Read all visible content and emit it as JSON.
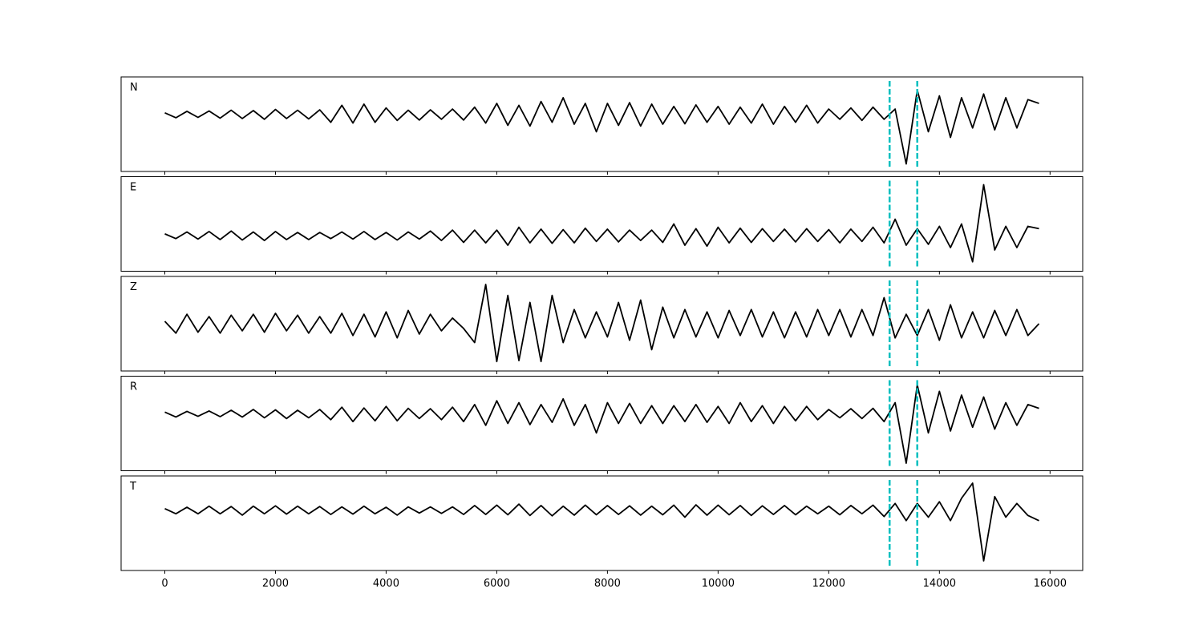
{
  "chart_data": [
    {
      "type": "line",
      "label": "N",
      "color": "#000000",
      "xlim": [
        -790,
        16590
      ],
      "ylim": [
        -1.5,
        1
      ],
      "xticks": [
        0,
        2000,
        4000,
        6000,
        8000,
        10000,
        12000,
        14000,
        16000
      ],
      "markers": [
        13100,
        13600
      ],
      "marker_color": "#00bfbf",
      "x": [
        0,
        200,
        400,
        600,
        800,
        1000,
        1200,
        1400,
        1600,
        1800,
        2000,
        2200,
        2400,
        2600,
        2800,
        3000,
        3200,
        3400,
        3600,
        3800,
        4000,
        4200,
        4400,
        4600,
        4800,
        5000,
        5200,
        5400,
        5600,
        5800,
        6000,
        6200,
        6400,
        6600,
        6800,
        7000,
        7200,
        7400,
        7600,
        7800,
        8000,
        8200,
        8400,
        8600,
        8800,
        9000,
        9200,
        9400,
        9600,
        9800,
        10000,
        10200,
        10400,
        10600,
        10800,
        11000,
        11200,
        11400,
        11600,
        11800,
        12000,
        12200,
        12400,
        12600,
        12800,
        13000,
        13200,
        13400,
        13600,
        13800,
        14000,
        14200,
        14400,
        14600,
        14800,
        15000,
        15200,
        15400,
        15600,
        15800
      ],
      "values": [
        0.05,
        -0.08,
        0.09,
        -0.07,
        0.1,
        -0.09,
        0.12,
        -0.1,
        0.11,
        -0.12,
        0.14,
        -0.1,
        0.12,
        -0.11,
        0.13,
        -0.2,
        0.25,
        -0.22,
        0.28,
        -0.2,
        0.18,
        -0.15,
        0.12,
        -0.14,
        0.13,
        -0.12,
        0.15,
        -0.14,
        0.2,
        -0.22,
        0.3,
        -0.28,
        0.25,
        -0.3,
        0.35,
        -0.2,
        0.45,
        -0.25,
        0.3,
        -0.45,
        0.3,
        -0.28,
        0.32,
        -0.3,
        0.28,
        -0.25,
        0.22,
        -0.24,
        0.26,
        -0.2,
        0.22,
        -0.25,
        0.2,
        -0.22,
        0.28,
        -0.25,
        0.22,
        -0.2,
        0.25,
        -0.22,
        0.15,
        -0.12,
        0.18,
        -0.15,
        0.2,
        -0.12,
        0.15,
        -1.3,
        0.65,
        -0.45,
        0.5,
        -0.6,
        0.45,
        -0.35,
        0.55,
        -0.4,
        0.45,
        -0.35,
        0.4,
        0.3
      ]
    },
    {
      "type": "line",
      "label": "E",
      "color": "#000000",
      "xlim": [
        -790,
        16590
      ],
      "ylim": [
        -0.75,
        1.25
      ],
      "xticks": [
        0,
        2000,
        4000,
        6000,
        8000,
        10000,
        12000,
        14000,
        16000
      ],
      "markers": [
        13100,
        13600
      ],
      "marker_color": "#00bfbf",
      "x": [
        0,
        200,
        400,
        600,
        800,
        1000,
        1200,
        1400,
        1600,
        1800,
        2000,
        2200,
        2400,
        2600,
        2800,
        3000,
        3200,
        3400,
        3600,
        3800,
        4000,
        4200,
        4400,
        4600,
        4800,
        5000,
        5200,
        5400,
        5600,
        5800,
        6000,
        6200,
        6400,
        6600,
        6800,
        7000,
        7200,
        7400,
        7600,
        7800,
        8000,
        8200,
        8400,
        8600,
        8800,
        9000,
        9200,
        9400,
        9600,
        9800,
        10000,
        10200,
        10400,
        10600,
        10800,
        11000,
        11200,
        11400,
        11600,
        11800,
        12000,
        12200,
        12400,
        12600,
        12800,
        13000,
        13200,
        13400,
        13600,
        13800,
        14000,
        14200,
        14400,
        14600,
        14800,
        15000,
        15200,
        15400,
        15600,
        15800
      ],
      "values": [
        0.04,
        -0.06,
        0.08,
        -0.07,
        0.09,
        -0.08,
        0.1,
        -0.09,
        0.08,
        -0.1,
        0.09,
        -0.08,
        0.07,
        -0.08,
        0.07,
        -0.06,
        0.08,
        -0.07,
        0.09,
        -0.08,
        0.07,
        -0.09,
        0.08,
        -0.07,
        0.1,
        -0.1,
        0.12,
        -0.14,
        0.12,
        -0.15,
        0.12,
        -0.2,
        0.18,
        -0.15,
        0.14,
        -0.16,
        0.13,
        -0.15,
        0.16,
        -0.12,
        0.14,
        -0.13,
        0.12,
        -0.1,
        0.12,
        -0.14,
        0.25,
        -0.2,
        0.15,
        -0.22,
        0.18,
        -0.15,
        0.16,
        -0.14,
        0.15,
        -0.12,
        0.14,
        -0.13,
        0.15,
        -0.12,
        0.13,
        -0.15,
        0.14,
        -0.12,
        0.18,
        -0.15,
        0.35,
        -0.2,
        0.15,
        -0.18,
        0.2,
        -0.25,
        0.25,
        -0.55,
        1.08,
        -0.3,
        0.2,
        -0.25,
        0.2,
        0.15
      ]
    },
    {
      "type": "line",
      "label": "Z",
      "color": "#000000",
      "xlim": [
        -790,
        16590
      ],
      "ylim": [
        -1,
        1
      ],
      "xticks": [
        0,
        2000,
        4000,
        6000,
        8000,
        10000,
        12000,
        14000,
        16000
      ],
      "markers": [
        13100,
        13600
      ],
      "marker_color": "#00bfbf",
      "x": [
        0,
        200,
        400,
        600,
        800,
        1000,
        1200,
        1400,
        1600,
        1800,
        2000,
        2200,
        2400,
        2600,
        2800,
        3000,
        3200,
        3400,
        3600,
        3800,
        4000,
        4200,
        4400,
        4600,
        4800,
        5000,
        5200,
        5400,
        5600,
        5800,
        6000,
        6200,
        6400,
        6600,
        6800,
        7000,
        7200,
        7400,
        7600,
        7800,
        8000,
        8200,
        8400,
        8600,
        8800,
        9000,
        9200,
        9400,
        9600,
        9800,
        10000,
        10200,
        10400,
        10600,
        10800,
        11000,
        11200,
        11400,
        11600,
        11800,
        12000,
        12200,
        12400,
        12600,
        12800,
        13000,
        13200,
        13400,
        13600,
        13800,
        14000,
        14200,
        14400,
        14600,
        14800,
        15000,
        15200,
        15400,
        15600,
        15800
      ],
      "values": [
        0.05,
        -0.2,
        0.2,
        -0.18,
        0.15,
        -0.2,
        0.18,
        -0.15,
        0.2,
        -0.18,
        0.22,
        -0.15,
        0.18,
        -0.2,
        0.15,
        -0.2,
        0.22,
        -0.25,
        0.2,
        -0.28,
        0.25,
        -0.3,
        0.28,
        -0.22,
        0.2,
        -0.15,
        0.12,
        -0.1,
        -0.4,
        0.83,
        -0.8,
        0.6,
        -0.78,
        0.45,
        -0.8,
        0.6,
        -0.4,
        0.3,
        -0.3,
        0.25,
        -0.28,
        0.45,
        -0.35,
        0.5,
        -0.55,
        0.35,
        -0.3,
        0.3,
        -0.28,
        0.25,
        -0.3,
        0.28,
        -0.25,
        0.3,
        -0.28,
        0.25,
        -0.3,
        0.25,
        -0.28,
        0.3,
        -0.25,
        0.3,
        -0.28,
        0.3,
        -0.25,
        0.55,
        -0.3,
        0.2,
        -0.25,
        0.3,
        -0.35,
        0.4,
        -0.3,
        0.25,
        -0.3,
        0.28,
        -0.25,
        0.3,
        -0.25,
        0.0
      ]
    },
    {
      "type": "line",
      "label": "R",
      "color": "#000000",
      "xlim": [
        -790,
        16590
      ],
      "ylim": [
        -1.5,
        1
      ],
      "xticks": [
        0,
        2000,
        4000,
        6000,
        8000,
        10000,
        12000,
        14000,
        16000
      ],
      "markers": [
        13100,
        13600
      ],
      "marker_color": "#00bfbf",
      "x": [
        0,
        200,
        400,
        600,
        800,
        1000,
        1200,
        1400,
        1600,
        1800,
        2000,
        2200,
        2400,
        2600,
        2800,
        3000,
        3200,
        3400,
        3600,
        3800,
        4000,
        4200,
        4400,
        4600,
        4800,
        5000,
        5200,
        5400,
        5600,
        5800,
        6000,
        6200,
        6400,
        6600,
        6800,
        7000,
        7200,
        7400,
        7600,
        7800,
        8000,
        8200,
        8400,
        8600,
        8800,
        9000,
        9200,
        9400,
        9600,
        9800,
        10000,
        10200,
        10400,
        10600,
        10800,
        11000,
        11200,
        11400,
        11600,
        11800,
        12000,
        12200,
        12400,
        12600,
        12800,
        13000,
        13200,
        13400,
        13600,
        13800,
        14000,
        14200,
        14400,
        14600,
        14800,
        15000,
        15200,
        15400,
        15600,
        15800
      ],
      "values": [
        0.05,
        -0.08,
        0.07,
        -0.06,
        0.08,
        -0.07,
        0.1,
        -0.08,
        0.12,
        -0.1,
        0.11,
        -0.12,
        0.1,
        -0.1,
        0.12,
        -0.15,
        0.18,
        -0.2,
        0.16,
        -0.18,
        0.2,
        -0.18,
        0.15,
        -0.12,
        0.14,
        -0.15,
        0.18,
        -0.2,
        0.25,
        -0.3,
        0.35,
        -0.25,
        0.3,
        -0.28,
        0.25,
        -0.22,
        0.4,
        -0.3,
        0.25,
        -0.5,
        0.3,
        -0.25,
        0.28,
        -0.25,
        0.22,
        -0.25,
        0.22,
        -0.2,
        0.25,
        -0.22,
        0.2,
        -0.25,
        0.3,
        -0.2,
        0.22,
        -0.25,
        0.2,
        -0.18,
        0.2,
        -0.15,
        0.12,
        -0.1,
        0.14,
        -0.12,
        0.15,
        -0.2,
        0.3,
        -1.3,
        0.77,
        -0.5,
        0.6,
        -0.45,
        0.5,
        -0.35,
        0.45,
        -0.4,
        0.3,
        -0.3,
        0.25,
        0.15
      ]
    },
    {
      "type": "line",
      "label": "T",
      "color": "#000000",
      "xlim": [
        -790,
        16590
      ],
      "ylim": [
        -1.75,
        1
      ],
      "xticks": [
        0,
        2000,
        4000,
        6000,
        8000,
        10000,
        12000,
        14000,
        16000
      ],
      "markers": [
        13100,
        13600
      ],
      "marker_color": "#00bfbf",
      "x": [
        0,
        200,
        400,
        600,
        800,
        1000,
        1200,
        1400,
        1600,
        1800,
        2000,
        2200,
        2400,
        2600,
        2800,
        3000,
        3200,
        3400,
        3600,
        3800,
        4000,
        4200,
        4400,
        4600,
        4800,
        5000,
        5200,
        5400,
        5600,
        5800,
        6000,
        6200,
        6400,
        6600,
        6800,
        7000,
        7200,
        7400,
        7600,
        7800,
        8000,
        8200,
        8400,
        8600,
        8800,
        9000,
        9200,
        9400,
        9600,
        9800,
        10000,
        10200,
        10400,
        10600,
        10800,
        11000,
        11200,
        11400,
        11600,
        11800,
        12000,
        12200,
        12400,
        12600,
        12800,
        13000,
        13200,
        13400,
        13600,
        13800,
        14000,
        14200,
        14400,
        14600,
        14800,
        15000,
        15200,
        15400,
        15600,
        15800
      ],
      "values": [
        0.05,
        -0.1,
        0.09,
        -0.1,
        0.12,
        -0.1,
        0.11,
        -0.14,
        0.12,
        -0.1,
        0.13,
        -0.11,
        0.12,
        -0.1,
        0.11,
        -0.12,
        0.1,
        -0.11,
        0.12,
        -0.1,
        0.09,
        -0.14,
        0.1,
        -0.08,
        0.1,
        -0.09,
        0.1,
        -0.12,
        0.14,
        -0.12,
        0.15,
        -0.13,
        0.18,
        -0.15,
        0.14,
        -0.16,
        0.12,
        -0.14,
        0.15,
        -0.13,
        0.14,
        -0.12,
        0.13,
        -0.14,
        0.12,
        -0.13,
        0.15,
        -0.2,
        0.16,
        -0.14,
        0.15,
        -0.13,
        0.14,
        -0.15,
        0.13,
        -0.12,
        0.14,
        -0.13,
        0.12,
        -0.1,
        0.12,
        -0.13,
        0.14,
        -0.1,
        0.15,
        -0.18,
        0.2,
        -0.3,
        0.2,
        -0.2,
        0.25,
        -0.3,
        0.35,
        0.79,
        -1.47,
        0.4,
        -0.2,
        0.2,
        -0.15,
        -0.3
      ]
    }
  ]
}
